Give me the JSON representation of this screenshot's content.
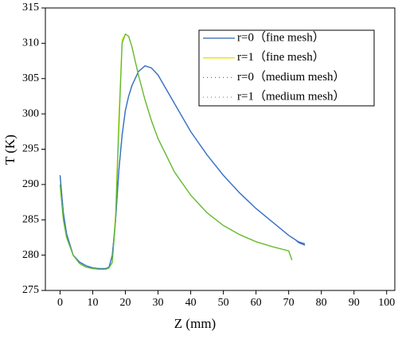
{
  "chart_data": {
    "type": "line",
    "xlabel": "Z (mm)",
    "ylabel": "T (K)",
    "x": [
      0,
      1,
      2,
      4,
      6,
      8,
      10,
      12,
      14,
      15,
      16,
      17,
      18,
      19,
      20,
      21,
      22,
      24,
      26,
      28,
      30,
      35,
      40,
      45,
      50,
      55,
      60,
      65,
      70,
      71,
      72,
      73,
      75
    ],
    "series": [
      {
        "name": "r=0（fine mesh）",
        "color": "#2e5fb5",
        "values": [
          291.3,
          286,
          283,
          280,
          279,
          278.5,
          278.2,
          278.1,
          278.1,
          278.3,
          280,
          285,
          292,
          297,
          300.5,
          302.5,
          304,
          306,
          306.8,
          306.5,
          305.5,
          301.5,
          297.5,
          294.2,
          291.3,
          288.8,
          286.6,
          284.7,
          282.8,
          282.5,
          282.2,
          281.8,
          281.4
        ]
      },
      {
        "name": "r=1（fine mesh）",
        "color": "#e6e600",
        "values": [
          290,
          285,
          282.5,
          280,
          278.8,
          278.3,
          278.1,
          278,
          278,
          278.2,
          279,
          286,
          299.5,
          310.5,
          311.3,
          311,
          309.5,
          305.5,
          302,
          299,
          296.5,
          291.8,
          288.5,
          286,
          284.2,
          282.9,
          281.9,
          281.2,
          280.6,
          279.3,
          null,
          null,
          null
        ]
      },
      {
        "name": "r=0（medium mesh）",
        "color": "#3a74c8",
        "values": [
          291.3,
          286,
          283,
          280,
          279,
          278.5,
          278.2,
          278.1,
          278.1,
          278.3,
          280,
          285,
          292,
          297,
          300.5,
          302.5,
          304,
          306,
          306.8,
          306.5,
          305.5,
          301.5,
          297.5,
          294.2,
          291.3,
          288.8,
          286.6,
          284.7,
          282.8,
          282.5,
          282.2,
          281.9,
          281.6
        ]
      },
      {
        "name": "r=1（medium mesh）",
        "color": "#5cb83c",
        "values": [
          290,
          285,
          282.5,
          280,
          278.8,
          278.3,
          278.1,
          278,
          278,
          278.2,
          279,
          285,
          298,
          310,
          311.3,
          311,
          309.5,
          305.5,
          302,
          299,
          296.5,
          291.8,
          288.5,
          286,
          284.2,
          282.9,
          281.9,
          281.2,
          280.6,
          279.3,
          null,
          null,
          null
        ]
      }
    ],
    "xlim": [
      -4.5,
      102.5
    ],
    "xticks": [
      0,
      10,
      20,
      30,
      40,
      50,
      60,
      70,
      80,
      90,
      100
    ],
    "ylim": [
      275,
      315
    ],
    "yticks": [
      275,
      280,
      285,
      290,
      295,
      300,
      305,
      310,
      315
    ],
    "legend": "upper right"
  }
}
